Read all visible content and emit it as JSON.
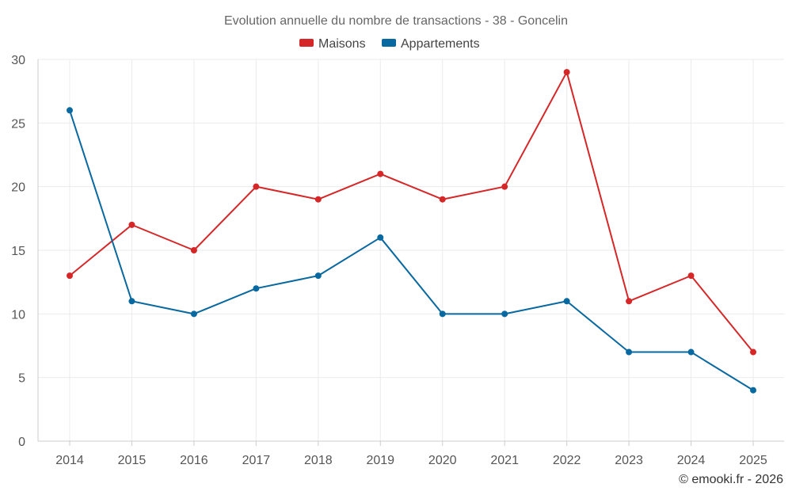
{
  "chart_data": {
    "type": "line",
    "title": "Evolution annuelle du nombre de transactions - 38 - Goncelin",
    "categories": [
      "2014",
      "2015",
      "2016",
      "2017",
      "2018",
      "2019",
      "2020",
      "2021",
      "2022",
      "2023",
      "2024",
      "2025"
    ],
    "series": [
      {
        "name": "Maisons",
        "color": "#d62728",
        "values": [
          13,
          17,
          15,
          20,
          19,
          21,
          19,
          20,
          29,
          11,
          13,
          7
        ]
      },
      {
        "name": "Appartements",
        "color": "#0868a0",
        "values": [
          26,
          11,
          10,
          12,
          13,
          16,
          10,
          10,
          11,
          7,
          7,
          4
        ]
      }
    ],
    "ylim": [
      0,
      30
    ],
    "yticks": [
      0,
      5,
      10,
      15,
      20,
      25,
      30
    ],
    "xlabel": "",
    "ylabel": "",
    "grid": true,
    "legend_position": "top-center"
  },
  "credit": "© emooki.fr - 2026"
}
